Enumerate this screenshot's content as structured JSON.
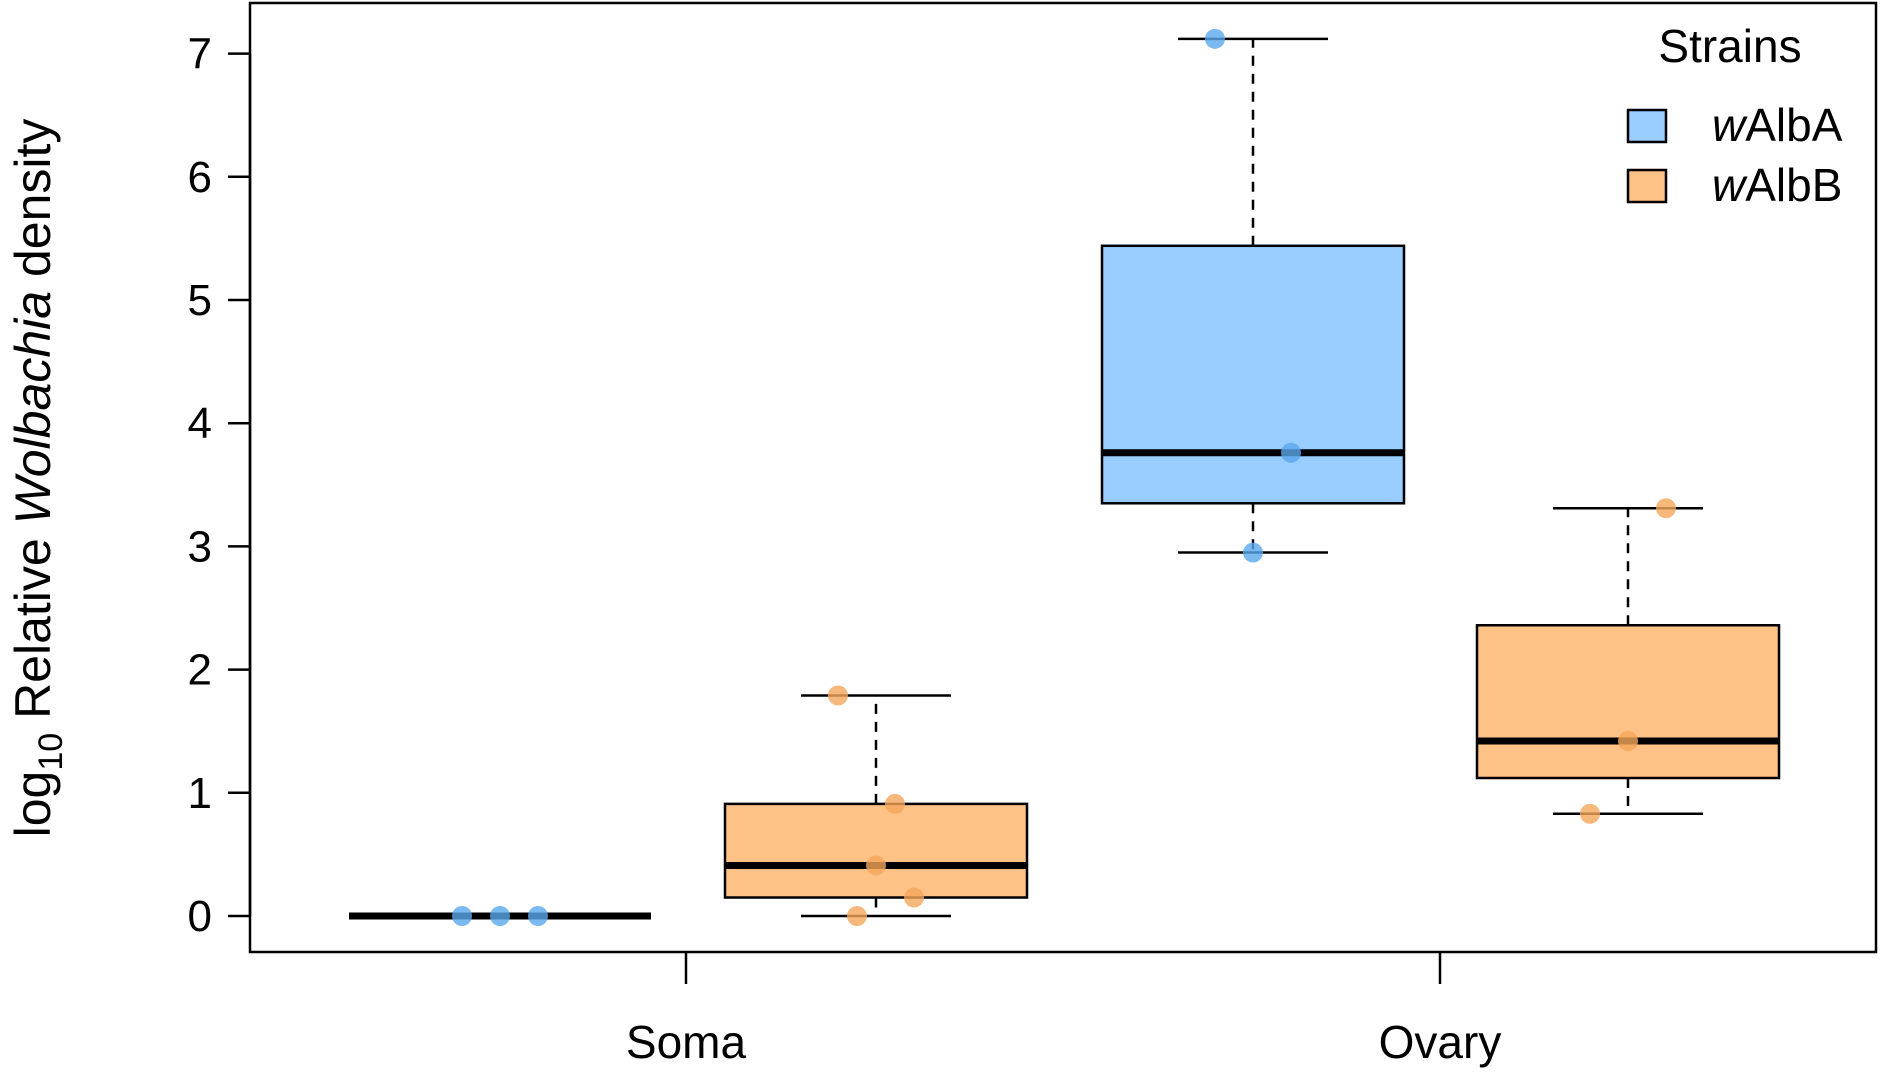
{
  "chart_data": {
    "type": "boxplot",
    "ylabel": {
      "prefix": "log",
      "subscript": "10",
      "text_before": " Relative ",
      "italic": "Wolbachia",
      "text_after": " density"
    },
    "ylim": [
      -0.3,
      7.4
    ],
    "yticks": [
      0,
      1,
      2,
      3,
      4,
      5,
      6,
      7
    ],
    "categories": [
      "Soma",
      "Ovary"
    ],
    "grid": false,
    "legend": {
      "title": "Strains",
      "placement": "top-right",
      "entries": [
        {
          "italic": "w",
          "text": "AlbA",
          "color": "#99ccff"
        },
        {
          "italic": "w",
          "text": "AlbB",
          "color": "#ffc286"
        }
      ]
    },
    "series": [
      {
        "name": "wAlbA",
        "box_color": "#99ccff",
        "point_color": "#5aa8ee",
        "boxes": [
          {
            "category": "Soma",
            "min": 0,
            "q1": 0,
            "median": 0,
            "q3": 0,
            "max": 0,
            "points": [
              0,
              0,
              0
            ]
          },
          {
            "category": "Ovary",
            "min": 2.95,
            "q1": 3.35,
            "median": 3.76,
            "q3": 5.44,
            "max": 7.12,
            "points": [
              7.12,
              3.76,
              2.95
            ]
          }
        ]
      },
      {
        "name": "wAlbB",
        "box_color": "#ffc286",
        "point_color": "#f5a65b",
        "boxes": [
          {
            "category": "Soma",
            "min": 0,
            "q1": 0.15,
            "median": 0.41,
            "q3": 0.91,
            "max": 1.79,
            "points": [
              1.79,
              0.91,
              0.41,
              0.15,
              0
            ]
          },
          {
            "category": "Ovary",
            "min": 0.83,
            "q1": 1.12,
            "median": 1.42,
            "q3": 2.36,
            "max": 3.31,
            "points": [
              3.31,
              1.42,
              0.83
            ]
          }
        ]
      }
    ]
  }
}
